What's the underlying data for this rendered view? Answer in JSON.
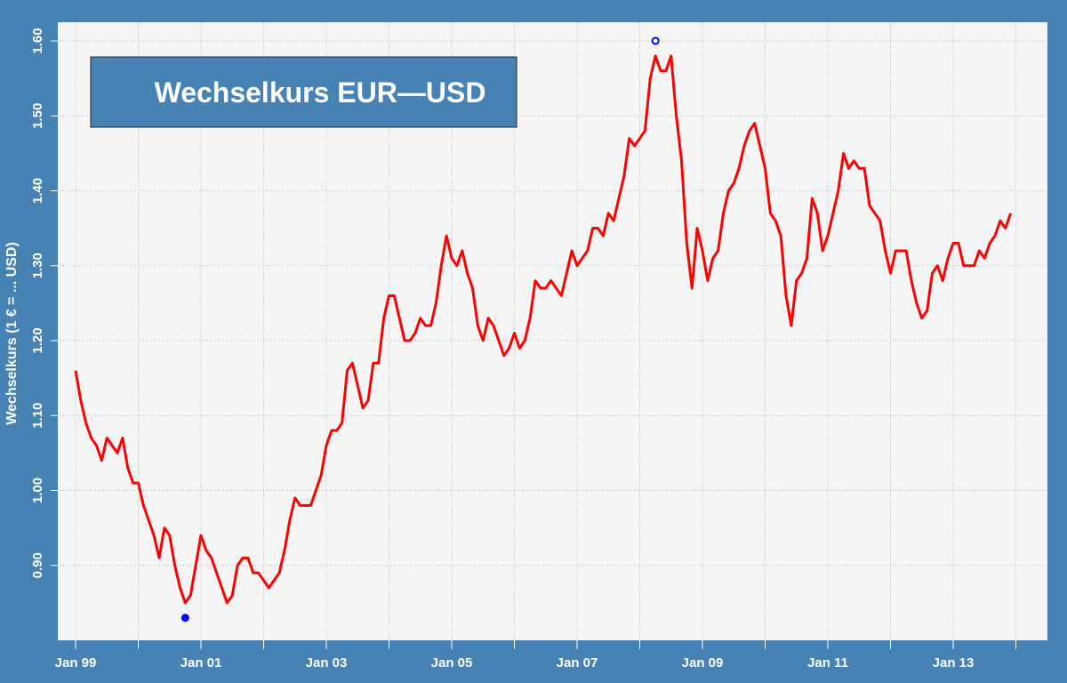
{
  "chart_data": {
    "type": "line",
    "title": "Wechselkurs EUR—USD",
    "y_label": "Wechselkurs (1 € = ... USD)",
    "color": "#ff0000",
    "grid": true,
    "x": [
      "Jan 99",
      "Feb 99",
      "Mar 99",
      "Apr 99",
      "May 99",
      "Jun 99",
      "Jul 99",
      "Aug 99",
      "Sep 99",
      "Oct 99",
      "Nov 99",
      "Dec 99",
      "Jan 00",
      "Feb 00",
      "Mar 00",
      "Apr 00",
      "May 00",
      "Jun 00",
      "Jul 00",
      "Aug 00",
      "Sep 00",
      "Oct 00",
      "Nov 00",
      "Dec 00",
      "Jan 01",
      "Feb 01",
      "Mar 01",
      "Apr 01",
      "May 01",
      "Jun 01",
      "Jul 01",
      "Aug 01",
      "Sep 01",
      "Oct 01",
      "Nov 01",
      "Dec 01",
      "Jan 02",
      "Feb 02",
      "Mar 02",
      "Apr 02",
      "May 02",
      "Jun 02",
      "Jul 02",
      "Aug 02",
      "Sep 02",
      "Oct 02",
      "Nov 02",
      "Dec 02",
      "Jan 03",
      "Feb 03",
      "Mar 03",
      "Apr 03",
      "May 03",
      "Jun 03",
      "Jul 03",
      "Aug 03",
      "Sep 03",
      "Oct 03",
      "Nov 03",
      "Dec 03",
      "Jan 04",
      "Feb 04",
      "Mar 04",
      "Apr 04",
      "May 04",
      "Jun 04",
      "Jul 04",
      "Aug 04",
      "Sep 04",
      "Oct 04",
      "Nov 04",
      "Dec 04",
      "Jan 05",
      "Feb 05",
      "Mar 05",
      "Apr 05",
      "May 05",
      "Jun 05",
      "Jul 05",
      "Aug 05",
      "Sep 05",
      "Oct 05",
      "Nov 05",
      "Dec 05",
      "Jan 06",
      "Feb 06",
      "Mar 06",
      "Apr 06",
      "May 06",
      "Jun 06",
      "Jul 06",
      "Aug 06",
      "Sep 06",
      "Oct 06",
      "Nov 06",
      "Dec 06",
      "Jan 07",
      "Feb 07",
      "Mar 07",
      "Apr 07",
      "May 07",
      "Jun 07",
      "Jul 07",
      "Aug 07",
      "Sep 07",
      "Oct 07",
      "Nov 07",
      "Dec 07",
      "Jan 08",
      "Feb 08",
      "Mar 08",
      "Apr 08",
      "May 08",
      "Jun 08",
      "Jul 08",
      "Aug 08",
      "Sep 08",
      "Oct 08",
      "Nov 08",
      "Dec 08",
      "Jan 09",
      "Feb 09",
      "Mar 09",
      "Apr 09",
      "May 09",
      "Jun 09",
      "Jul 09",
      "Aug 09",
      "Sep 09",
      "Oct 09",
      "Nov 09",
      "Dec 09",
      "Jan 10",
      "Feb 10",
      "Mar 10",
      "Apr 10",
      "May 10",
      "Jun 10",
      "Jul 10",
      "Aug 10",
      "Sep 10",
      "Oct 10",
      "Nov 10",
      "Dec 10",
      "Jan 11",
      "Feb 11",
      "Mar 11",
      "Apr 11",
      "May 11",
      "Jun 11",
      "Jul 11",
      "Aug 11",
      "Sep 11",
      "Oct 11",
      "Nov 11",
      "Dec 11",
      "Jan 12",
      "Feb 12",
      "Mar 12",
      "Apr 12",
      "May 12",
      "Jun 12",
      "Jul 12",
      "Aug 12",
      "Sep 12",
      "Oct 12",
      "Nov 12",
      "Dec 12",
      "Jan 13",
      "Feb 13",
      "Mar 13",
      "Apr 13",
      "May 13",
      "Jun 13",
      "Jul 13",
      "Aug 13",
      "Sep 13",
      "Oct 13",
      "Nov 13",
      "Dec 13"
    ],
    "values": [
      1.16,
      1.12,
      1.09,
      1.07,
      1.06,
      1.04,
      1.07,
      1.06,
      1.05,
      1.07,
      1.03,
      1.01,
      1.01,
      0.98,
      0.96,
      0.94,
      0.91,
      0.95,
      0.94,
      0.9,
      0.87,
      0.85,
      0.86,
      0.9,
      0.94,
      0.92,
      0.91,
      0.89,
      0.87,
      0.85,
      0.86,
      0.9,
      0.91,
      0.91,
      0.89,
      0.89,
      0.88,
      0.87,
      0.88,
      0.89,
      0.92,
      0.96,
      0.99,
      0.98,
      0.98,
      0.98,
      1.0,
      1.02,
      1.06,
      1.08,
      1.08,
      1.09,
      1.16,
      1.17,
      1.14,
      1.11,
      1.12,
      1.17,
      1.17,
      1.23,
      1.26,
      1.26,
      1.23,
      1.2,
      1.2,
      1.21,
      1.23,
      1.22,
      1.22,
      1.25,
      1.3,
      1.34,
      1.31,
      1.3,
      1.32,
      1.29,
      1.27,
      1.22,
      1.2,
      1.23,
      1.22,
      1.2,
      1.18,
      1.19,
      1.21,
      1.19,
      1.2,
      1.23,
      1.28,
      1.27,
      1.27,
      1.28,
      1.27,
      1.26,
      1.29,
      1.32,
      1.3,
      1.31,
      1.32,
      1.35,
      1.35,
      1.34,
      1.37,
      1.36,
      1.39,
      1.42,
      1.47,
      1.46,
      1.47,
      1.48,
      1.55,
      1.58,
      1.56,
      1.56,
      1.58,
      1.5,
      1.44,
      1.33,
      1.27,
      1.35,
      1.32,
      1.28,
      1.31,
      1.32,
      1.37,
      1.4,
      1.41,
      1.43,
      1.46,
      1.48,
      1.49,
      1.46,
      1.43,
      1.37,
      1.36,
      1.34,
      1.26,
      1.22,
      1.28,
      1.29,
      1.31,
      1.39,
      1.37,
      1.32,
      1.34,
      1.37,
      1.4,
      1.45,
      1.43,
      1.44,
      1.43,
      1.43,
      1.38,
      1.37,
      1.36,
      1.32,
      1.29,
      1.32,
      1.32,
      1.32,
      1.28,
      1.25,
      1.23,
      1.24,
      1.29,
      1.3,
      1.28,
      1.31,
      1.33,
      1.33,
      1.3,
      1.3,
      1.3,
      1.32,
      1.31,
      1.33,
      1.34,
      1.36,
      1.35,
      1.37
    ],
    "markers": [
      {
        "x": "Oct 00",
        "value": 0.83,
        "color": "#0000ff",
        "filled": true
      },
      {
        "x": "Apr 08",
        "value": 1.6,
        "color": "#0000ff",
        "filled": false
      }
    ],
    "ylim": [
      0.8,
      1.625
    ],
    "yticks": [
      {
        "value": 0.9,
        "label": "0.90"
      },
      {
        "value": 1.0,
        "label": "1.00"
      },
      {
        "value": 1.1,
        "label": "1.10"
      },
      {
        "value": 1.2,
        "label": "1.20"
      },
      {
        "value": 1.3,
        "label": "1.30"
      },
      {
        "value": 1.4,
        "label": "1.40"
      },
      {
        "value": 1.5,
        "label": "1.50"
      },
      {
        "value": 1.6,
        "label": "1.60"
      }
    ],
    "xticks": [
      "Jan 99",
      null,
      "Jan 01",
      null,
      "Jan 03",
      null,
      "Jan 05",
      null,
      "Jan 07",
      null,
      "Jan 09",
      null,
      "Jan 11",
      null,
      "Jan 13",
      null
    ]
  }
}
